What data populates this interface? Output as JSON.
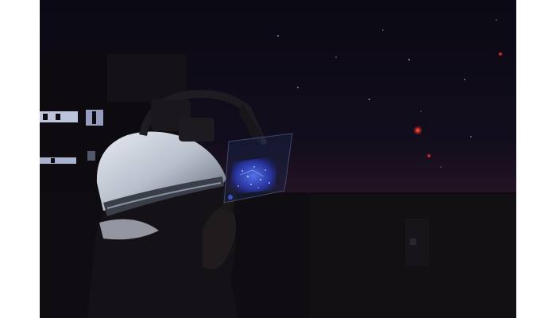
{
  "photo": {
    "background_color": "#ffffff",
    "sky_top_color": "#0c0a16",
    "sky_horizon_color": "#2a1424",
    "ground_color": "#0e0c10",
    "display_glow_color": "#3a64ff",
    "red_star_color": "#ff3020",
    "window_light_color": "#d8e2ff",
    "helmet_color": "#d6dbe6"
  }
}
